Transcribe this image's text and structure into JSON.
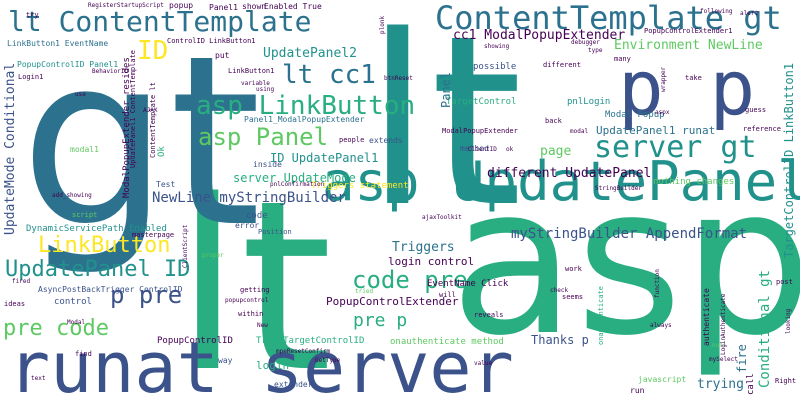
{
  "palette": {
    "dark_purple": "#440154",
    "indigo": "#3b528b",
    "teal_blue": "#2c728e",
    "teal": "#21918c",
    "green_teal": "#28ae80",
    "green": "#5ec962",
    "lime": "#addc30",
    "yellow": "#fde725"
  },
  "words": {
    "asp_lg": "asp",
    "lt_lg": "lt",
    "gt_lg": "gt",
    "runat_server": "runat server",
    "asp_updatepanel": "asp UpdatePanel",
    "p_p": "p p",
    "contenttemplate_gt": "ContentTemplate gt",
    "lt_contenttemplate": "lt ContentTemplate",
    "asp_linkbutton": "asp LinkButton",
    "asp_panel": "asp Panel",
    "server_gt": "server gt",
    "code_pre": "code pre",
    "pre_code": "pre code",
    "p_pre": "p pre",
    "pre_p": "pre p",
    "updatepanel_id": "UpdatePanel ID",
    "linkbutton": "LinkButton",
    "lt_cc1": "lt cc1",
    "id": "ID",
    "cc1_modalpopupextender": "cc1 ModalPopupExtender",
    "environment_newline": "Environment NewLine",
    "updatepanel2": "UpdatePanel2",
    "mystringbuilder_appendformat": "myStringBuilder AppendFormat",
    "newline_mystringbuilder": "NewLine myStringBuilder",
    "different_updatepanel": "different UpdatePanel",
    "server_updatemode": "server UpdateMode",
    "id_updatepanel1": "ID UpdatePanel1",
    "updatepanel1_runat": "UpdatePanel1 runat",
    "page": "page",
    "triggers": "Triggers",
    "login_control": "login control",
    "popupcontrolextender": "PopupControlExtender",
    "thanks_p": "Thanks p",
    "trying": "trying",
    "updatemode_conditional": "UpdateMode Conditional",
    "conditional_gt": "Conditional gt",
    "targetcontrolid_linkbutton1": "TargetControlID LinkButton1",
    "modal_popup": "Modal Popup",
    "panel1_modalpopupextender": "Panel1_ModalPopupExtender",
    "panel": "Panel",
    "possible": "possible",
    "pnllogin": "pnlLogin",
    "targetcontrol": "TargetControl",
    "nothing_changes": "nothing changes",
    "triggers_statement": "Triggers statement",
    "dynamicservicepath_enabled": "DynamicServicePath Enabled",
    "asyncpostbacktrigger_controlid": "AsyncPostBackTrigger ControlID",
    "eventname_click": "EventName Click",
    "true_targetcontrolid": "True TargetControlID",
    "popupcontrolid": "PopupControlID",
    "onauthenticate_method": "onauthenticate method",
    "modalpopupextender_resides": "ModalPopupExtender resides",
    "linkbutton1_eventname": "LinkButton1 EventName",
    "popupcontrolid_panel1": "PopupControlID Panel1",
    "controlid_linkbutton1": "ControlID LinkButton1",
    "contenttemplate_lt": "ContentTemplate lt",
    "updatepanel1_contenttemplate": "UpdatePanel1 ContentTemplate",
    "modalpopupextender": "ModalPopupExtender",
    "popupcontrolextender1": "PopupControlExtender1",
    "panel1": "Panel1",
    "popup": "popup",
    "shown": "shown",
    "enabled_true": "Enabled True",
    "put": "put",
    "login1": "Login1",
    "linkbutton1": "LinkButton1",
    "modal1": "modal1",
    "ok": "Ok",
    "test": "Test",
    "extends": "extends",
    "method": "method",
    "inside": "inside",
    "people": "people",
    "code": "code",
    "error": "error",
    "position": "Position",
    "getting": "getting",
    "within": "within",
    "control": "control",
    "ideas": "ideas",
    "extender": "extender",
    "way": "way",
    "login": "login",
    "will": "will",
    "reveals": "reveals",
    "seems": "seems",
    "run": "run",
    "javascript": "javascript",
    "fire": "fire",
    "call": "call",
    "right": "Right",
    "authenticate": "authenticate",
    "post": "post",
    "work": "work",
    "check": "check",
    "always": "always",
    "take": "take",
    "guess": "guess",
    "reference": "reference",
    "back": "back",
    "different": "different",
    "many": "many",
    "script": "script",
    "masterpage": "masterpage",
    "popupcontrol": "popupcontrol",
    "fired": "fired",
    "try": "try",
    "find": "find",
    "text": "text",
    "modal": "Modal",
    "new": "New",
    "value": "value",
    "onauthenticate": "onauthenticate",
    "registerstartupscript": "RegisterStartupScript",
    "behaviorid": "BehaviorID",
    "variable": "variable",
    "using": "using",
    "ajax": "AJAX",
    "use": "use",
    "add_showing": "add_showing",
    "clientid": "ClientID",
    "ok_sm": "ok",
    "pnlconfirmation": "pnlConfirmation",
    "clientscript": "ClientScript",
    "proper": "proper",
    "tried": "tried",
    "ajaxtoolkit": "ajaxToolkit",
    "getype": "GetType",
    "mperesetconfirm": "mpeResetConfirm",
    "stringbuilder": "StringBuilder",
    "plonk": "plonk",
    "showing": "showing",
    "btnreset": "btnReset",
    "debugger": "debugger",
    "type": "type",
    "alert": "alert",
    "following": "following",
    "aspx": "aspx",
    "modal_sm": "modal",
    "looking": "looking",
    "null": "null",
    "loginauthenticate": "LoginAuthenticate",
    "myselect": "mySelect",
    "function": "function",
    "wrapper": "wrapper"
  }
}
